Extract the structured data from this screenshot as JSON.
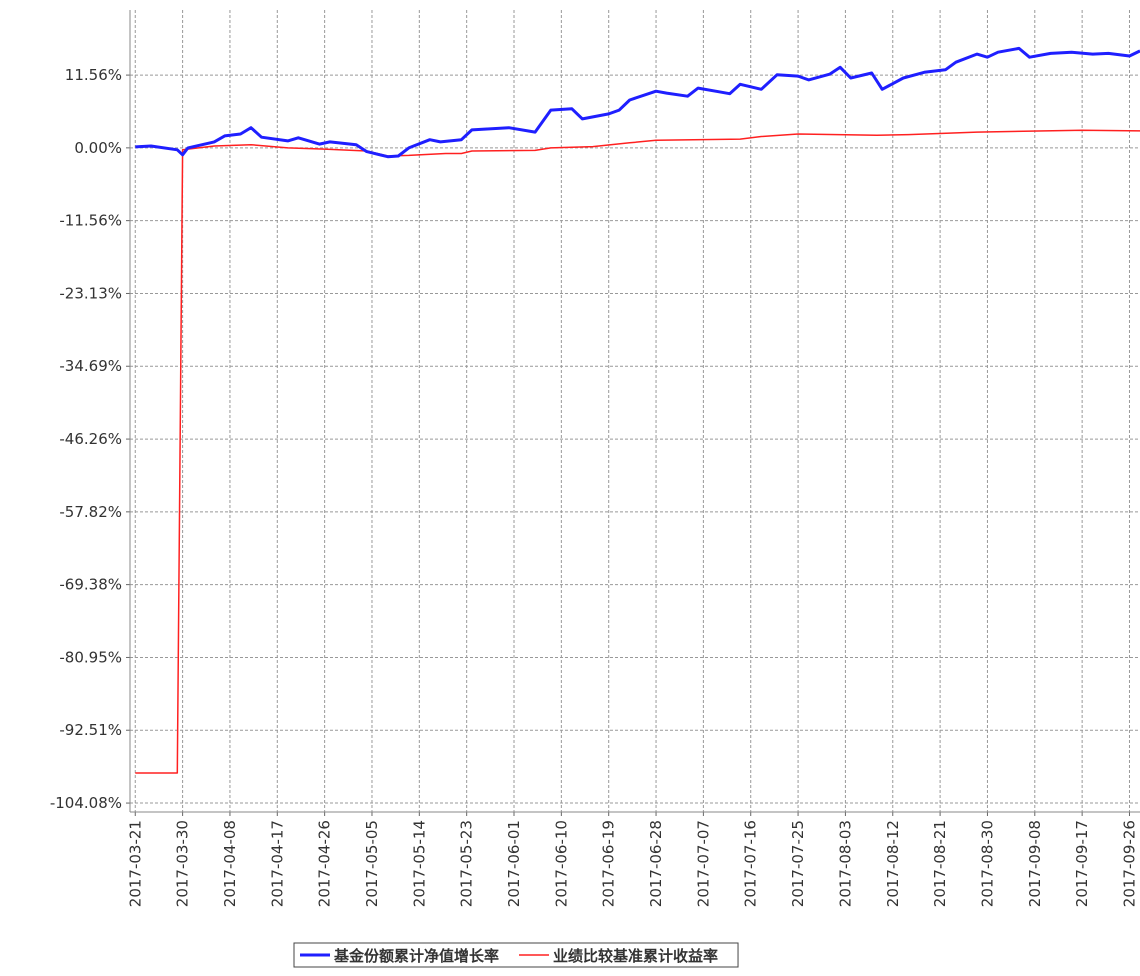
{
  "chart_data": {
    "type": "line",
    "xlim": [
      "2017-03-20",
      "2017-09-28"
    ],
    "xticks": [
      "2017-03-21",
      "2017-03-30",
      "2017-04-08",
      "2017-04-17",
      "2017-04-26",
      "2017-05-05",
      "2017-05-14",
      "2017-05-23",
      "2017-06-01",
      "2017-06-10",
      "2017-06-19",
      "2017-06-28",
      "2017-07-07",
      "2017-07-16",
      "2017-07-25",
      "2017-08-03",
      "2017-08-12",
      "2017-08-21",
      "2017-08-30",
      "2017-09-08",
      "2017-09-17",
      "2017-09-26"
    ],
    "ylim": [
      -105.5,
      21.9
    ],
    "yticks": [
      {
        "value": 11.56,
        "label": "11.56%"
      },
      {
        "value": 0,
        "label": "0.00%"
      },
      {
        "value": -11.56,
        "label": "-11.56%"
      },
      {
        "value": -23.13,
        "label": "-23.13%"
      },
      {
        "value": -34.69,
        "label": "-34.69%"
      },
      {
        "value": -46.26,
        "label": "-46.26%"
      },
      {
        "value": -57.82,
        "label": "-57.82%"
      },
      {
        "value": -69.38,
        "label": "-69.38%"
      },
      {
        "value": -80.95,
        "label": "-80.95%"
      },
      {
        "value": -92.51,
        "label": "-92.51%"
      },
      {
        "value": -104.08,
        "label": "-104.08%"
      }
    ],
    "grid": true,
    "legend": "bottom",
    "series": [
      {
        "name": "基金份额累计净值增长率",
        "color": "#1f1fff",
        "x": [
          "2017-03-21",
          "2017-03-24",
          "2017-03-29",
          "2017-03-30",
          "2017-03-31",
          "2017-04-05",
          "2017-04-07",
          "2017-04-10",
          "2017-04-12",
          "2017-04-14",
          "2017-04-19",
          "2017-04-21",
          "2017-04-25",
          "2017-04-27",
          "2017-05-02",
          "2017-05-04",
          "2017-05-08",
          "2017-05-10",
          "2017-05-12",
          "2017-05-16",
          "2017-05-18",
          "2017-05-22",
          "2017-05-24",
          "2017-05-31",
          "2017-06-05",
          "2017-06-08",
          "2017-06-12",
          "2017-06-14",
          "2017-06-19",
          "2017-06-21",
          "2017-06-23",
          "2017-06-28",
          "2017-06-30",
          "2017-07-04",
          "2017-07-06",
          "2017-07-10",
          "2017-07-12",
          "2017-07-14",
          "2017-07-18",
          "2017-07-21",
          "2017-07-25",
          "2017-07-27",
          "2017-07-31",
          "2017-08-02",
          "2017-08-04",
          "2017-08-08",
          "2017-08-10",
          "2017-08-14",
          "2017-08-18",
          "2017-08-22",
          "2017-08-24",
          "2017-08-28",
          "2017-08-30",
          "2017-09-01",
          "2017-09-05",
          "2017-09-07",
          "2017-09-11",
          "2017-09-15",
          "2017-09-19",
          "2017-09-22",
          "2017-09-26",
          "2017-09-28"
        ],
        "values": [
          0.16,
          0.3,
          -0.3,
          -1.1,
          0,
          0.95,
          1.9,
          2.2,
          3.2,
          1.7,
          1.1,
          1.6,
          0.6,
          0.95,
          0.5,
          -0.6,
          -1.4,
          -1.3,
          0,
          1.3,
          0.95,
          1.3,
          2.85,
          3.2,
          2.5,
          6.0,
          6.2,
          4.6,
          5.4,
          6.0,
          7.6,
          9.0,
          8.7,
          8.2,
          9.5,
          8.9,
          8.6,
          10.1,
          9.3,
          11.6,
          11.4,
          10.8,
          11.7,
          12.8,
          11.1,
          11.9,
          9.3,
          11.1,
          12.0,
          12.4,
          13.6,
          14.9,
          14.4,
          15.2,
          15.8,
          14.4,
          15.0,
          15.2,
          14.9,
          15.0,
          14.6,
          15.4
        ]
      },
      {
        "name": "业绩比较基准累计收益率",
        "color": "#ff2020",
        "x": [
          "2017-03-21",
          "2017-03-29",
          "2017-03-30",
          "2017-04-05",
          "2017-04-12",
          "2017-04-19",
          "2017-04-26",
          "2017-05-04",
          "2017-05-08",
          "2017-05-12",
          "2017-05-19",
          "2017-05-22",
          "2017-05-24",
          "2017-06-05",
          "2017-06-08",
          "2017-06-16",
          "2017-06-23",
          "2017-06-28",
          "2017-07-14",
          "2017-07-18",
          "2017-07-25",
          "2017-08-09",
          "2017-08-15",
          "2017-08-28",
          "2017-09-17",
          "2017-09-28"
        ],
        "values": [
          -99.3,
          -99.3,
          -0.3,
          0.3,
          0.5,
          0.0,
          -0.2,
          -0.5,
          -1.3,
          -1.2,
          -0.9,
          -0.9,
          -0.5,
          -0.4,
          0.0,
          0.2,
          0.8,
          1.2,
          1.4,
          1.8,
          2.2,
          2.0,
          2.1,
          2.5,
          2.8,
          2.7
        ]
      }
    ]
  }
}
